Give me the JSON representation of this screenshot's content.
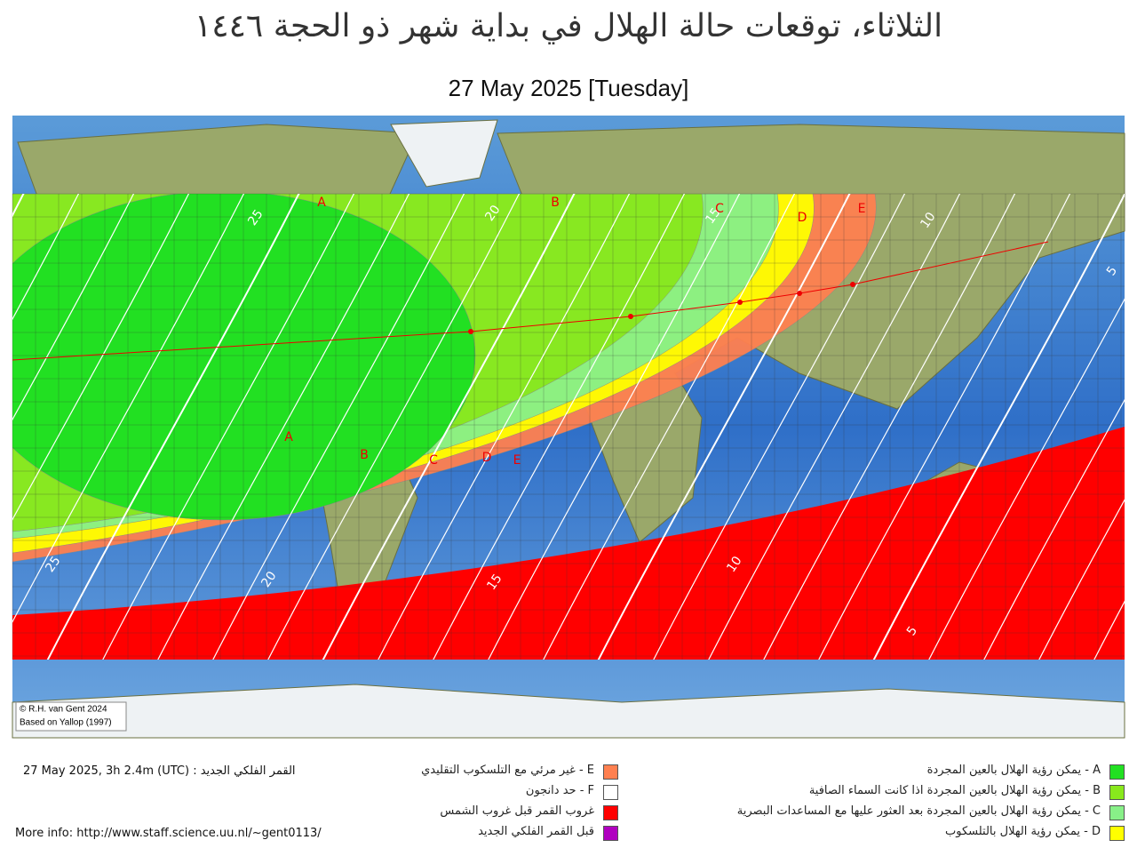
{
  "header": {
    "title": "الثلاثاء، توقعات حالة الهلال في بداية شهر ذو الحجة ١٤٤٦",
    "subtitle": "27 May 2025 [Tuesday]"
  },
  "map": {
    "zone_labels": [
      "A",
      "B",
      "C",
      "D",
      "E"
    ],
    "contour_labels": [
      "25",
      "20",
      "15",
      "10",
      "5"
    ],
    "credit": [
      "© R.H. van Gent 2024",
      "Based on Yallop (1997)"
    ]
  },
  "footer": {
    "new_moon": "27 May 2025, 3h 2.4m (UTC) : القمر الفلكي الجديد",
    "more_info": "More info: http://www.staff.science.uu.nl/~gent0113/"
  },
  "legend": [
    {
      "text": "A - يمكن رؤية الهلال بالعين المجردة",
      "color": "#22e022"
    },
    {
      "text": "B - يمكن رؤية الهلال بالعين المجردة اذا كانت السماء الصافية",
      "color": "#88e81c"
    },
    {
      "text": "C - يمكن رؤية الهلال بالعين المجردة بعد العثور عليها مع المساعدات البصرية",
      "color": "#88f088"
    },
    {
      "text": "D - يمكن رؤية الهلال بالتلسكوب",
      "color": "#ffff00"
    },
    {
      "text": "E - غير مرئي مع التلسكوب التقليدي",
      "color": "#ff8050"
    },
    {
      "text": "F - حد دانجون",
      "color": "#ffffff"
    },
    {
      "text": "غروب القمر قبل غروب الشمس",
      "color": "#ff0000"
    },
    {
      "text": "قبل القمر  الفلكي الجديد",
      "color": "#b000c0"
    }
  ]
}
